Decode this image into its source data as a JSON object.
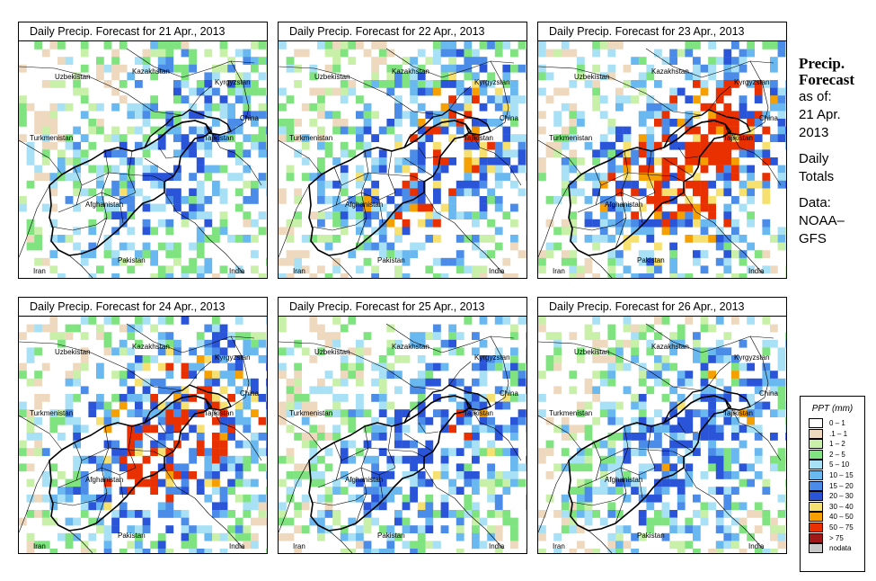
{
  "panels": [
    {
      "title": "Daily Precip. Forecast for  21 Apr., 2013",
      "seed": 11,
      "wet": 0.55
    },
    {
      "title": "Daily Precip. Forecast for  22 Apr., 2013",
      "seed": 23,
      "wet": 0.75
    },
    {
      "title": "Daily Precip. Forecast for  23 Apr., 2013",
      "seed": 37,
      "wet": 1.0
    },
    {
      "title": "Daily Precip. Forecast for  24 Apr., 2013",
      "seed": 41,
      "wet": 0.9
    },
    {
      "title": "Daily Precip. Forecast for  25 Apr., 2013",
      "seed": 53,
      "wet": 0.65
    },
    {
      "title": "Daily Precip. Forecast for  26 Apr., 2013",
      "seed": 67,
      "wet": 0.6
    }
  ],
  "map_labels": {
    "uzbekistan": "Uzbekistan",
    "kazakhstan": "Kazakhstan",
    "kyrgyzstan": "Kyrgyzstan",
    "china": "China",
    "turkmenistan": "Turkmenistan",
    "tajikistan": "Tajikistan",
    "afghanistan": "Afghanistan",
    "iran": "Iran",
    "pakistan": "Pakistan",
    "india": "India"
  },
  "side": {
    "title_line1": "Precip.",
    "title_line2": "Forecast",
    "asof": "as of:",
    "date1": "21 Apr.",
    "date2": "2013",
    "totals1": "Daily",
    "totals2": "Totals",
    "data1": "Data:",
    "data2": "NOAA–",
    "data3": "GFS"
  },
  "legend": {
    "title": "PPT (mm)",
    "items": [
      {
        "label": "0 – 1",
        "color": "#ffffff"
      },
      {
        "label": ".1 – 1",
        "color": "#eed9bf"
      },
      {
        "label": "1 – 2",
        "color": "#c8f0a8"
      },
      {
        "label": "2 – 5",
        "color": "#7fe37f"
      },
      {
        "label": "5 – 10",
        "color": "#a8e0f5"
      },
      {
        "label": "10 – 15",
        "color": "#6ab8f0"
      },
      {
        "label": "15 – 20",
        "color": "#4a8ce8"
      },
      {
        "label": "20 – 30",
        "color": "#2a55d8"
      },
      {
        "label": "30 – 40",
        "color": "#f5e070"
      },
      {
        "label": "40 – 50",
        "color": "#f5a000"
      },
      {
        "label": "50 – 75",
        "color": "#e83000"
      },
      {
        "label": "> 75",
        "color": "#a01818"
      },
      {
        "label": "nodata",
        "color": "#c8c8c8"
      }
    ]
  }
}
